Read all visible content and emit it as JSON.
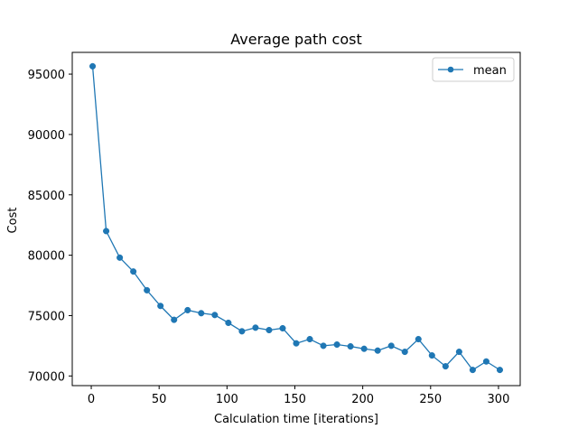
{
  "chart_data": {
    "type": "line",
    "title": "Average path cost",
    "xlabel": "Calculation time [iterations]",
    "ylabel": "Cost",
    "xlim": [
      -14,
      316
    ],
    "ylim": [
      69200,
      96800
    ],
    "xticks": [
      0,
      50,
      100,
      150,
      200,
      250,
      300
    ],
    "yticks": [
      70000,
      75000,
      80000,
      85000,
      90000,
      95000
    ],
    "grid": false,
    "legend_position": "top-right",
    "series": [
      {
        "name": "mean",
        "color": "#1f77b4",
        "marker": "circle",
        "x": [
          1,
          11,
          21,
          31,
          41,
          51,
          61,
          71,
          81,
          91,
          101,
          111,
          121,
          131,
          141,
          151,
          161,
          171,
          181,
          191,
          201,
          211,
          221,
          231,
          241,
          251,
          261,
          271,
          281,
          291,
          301
        ],
        "y": [
          95650,
          82000,
          79800,
          78650,
          77100,
          75800,
          74650,
          75450,
          75200,
          75050,
          74400,
          73700,
          74000,
          73800,
          73950,
          72700,
          73050,
          72500,
          72600,
          72450,
          72250,
          72100,
          72500,
          72000,
          73050,
          71700,
          70800,
          72000,
          70500,
          71200,
          70500
        ]
      }
    ]
  }
}
